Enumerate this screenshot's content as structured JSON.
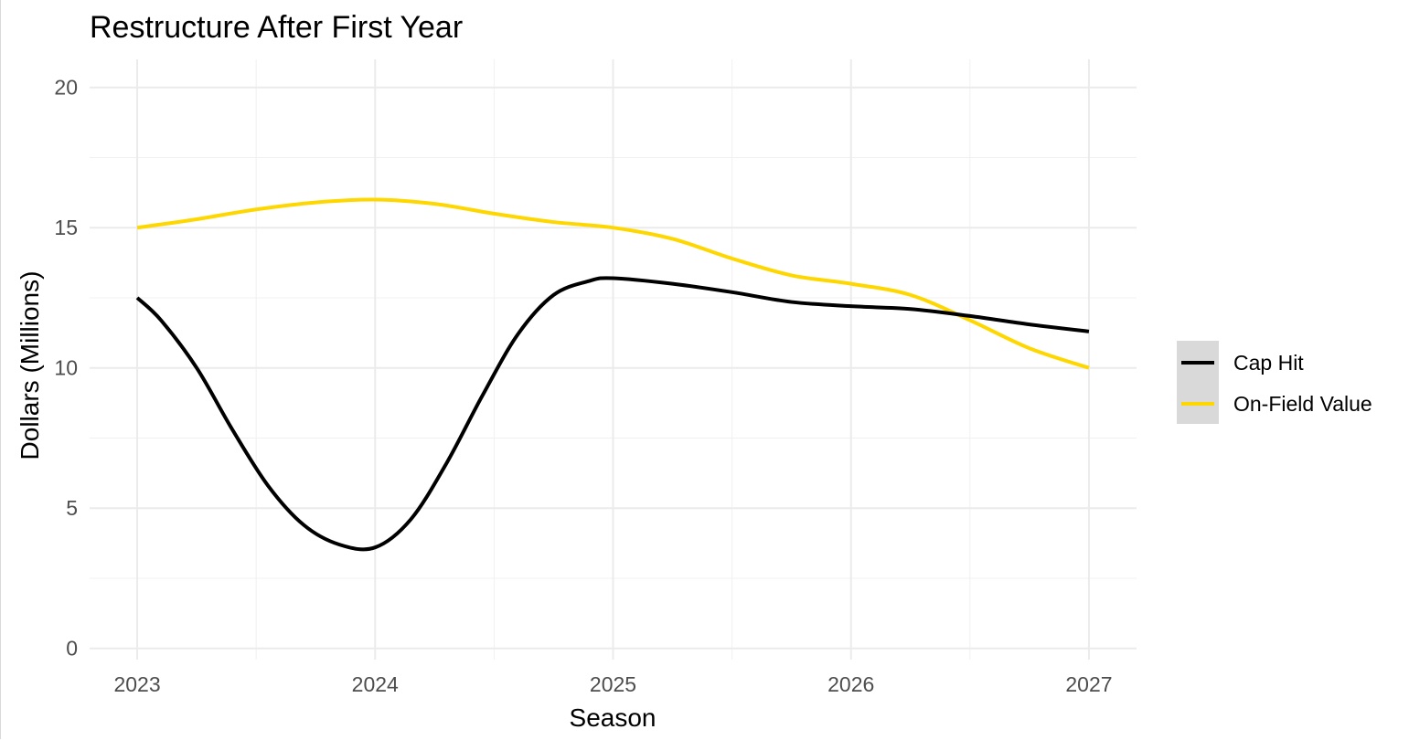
{
  "chart_data": {
    "type": "line",
    "title": "Restructure After First Year",
    "xlabel": "Season",
    "ylabel": "Dollars (Millions)",
    "x_ticks": [
      "2023",
      "2024",
      "2025",
      "2026",
      "2027"
    ],
    "y_ticks": [
      "0",
      "5",
      "10",
      "15",
      "20"
    ],
    "xlim": [
      2022.8,
      2027.2
    ],
    "ylim": [
      -0.4,
      21.0
    ],
    "grid": true,
    "legend_position": "right",
    "series": [
      {
        "name": "Cap Hit",
        "color": "#000000",
        "x": [
          2023.0,
          2023.1,
          2023.25,
          2023.4,
          2023.55,
          2023.7,
          2023.85,
          2024.0,
          2024.15,
          2024.3,
          2024.45,
          2024.6,
          2024.75,
          2024.9,
          2025.0,
          2025.25,
          2025.5,
          2025.75,
          2026.0,
          2026.25,
          2026.5,
          2026.75,
          2027.0
        ],
        "values": [
          12.5,
          11.7,
          10.0,
          7.8,
          5.8,
          4.4,
          3.7,
          3.6,
          4.6,
          6.6,
          9.0,
          11.2,
          12.6,
          13.1,
          13.2,
          13.0,
          12.7,
          12.35,
          12.2,
          12.1,
          11.85,
          11.55,
          11.3
        ]
      },
      {
        "name": "On-Field Value",
        "color": "#FFD700",
        "x": [
          2023.0,
          2023.25,
          2023.5,
          2023.75,
          2024.0,
          2024.25,
          2024.5,
          2024.75,
          2025.0,
          2025.25,
          2025.5,
          2025.75,
          2026.0,
          2026.25,
          2026.5,
          2026.75,
          2027.0
        ],
        "values": [
          15.0,
          15.3,
          15.65,
          15.9,
          16.0,
          15.85,
          15.5,
          15.2,
          15.0,
          14.6,
          13.9,
          13.3,
          13.0,
          12.6,
          11.7,
          10.7,
          10.0
        ]
      }
    ]
  }
}
